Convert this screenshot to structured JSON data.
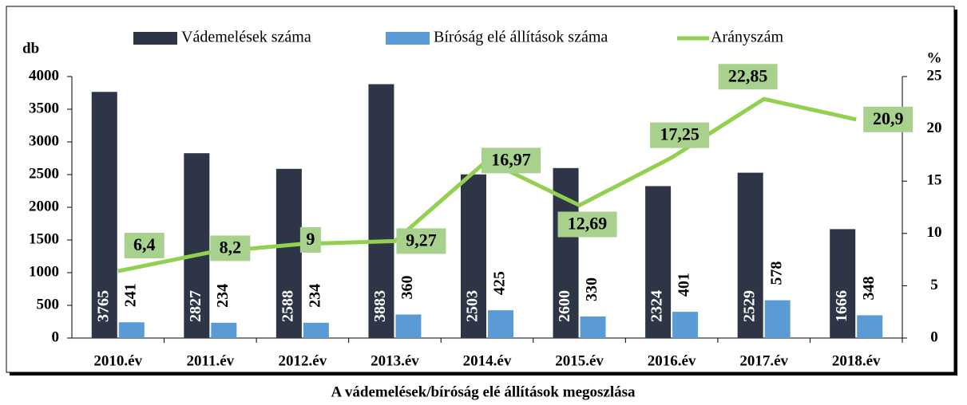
{
  "chart_data": {
    "type": "bar",
    "caption": "A vádemelések/bíróság elé állítások megoszlása",
    "ylabel": "db",
    "y2label": "%",
    "categories": [
      "2010.év",
      "2011.év",
      "2012.év",
      "2013.év",
      "2014.év",
      "2015.év",
      "2016.év",
      "2017.év",
      "2018.év"
    ],
    "series": [
      {
        "name": "Vádemelések száma",
        "color": "#2e3547",
        "type": "bar",
        "values": [
          3765,
          2827,
          2588,
          3883,
          2503,
          2600,
          2324,
          2529,
          1666
        ]
      },
      {
        "name": "Bíróság elé állítások száma",
        "color": "#5b9bd5",
        "type": "bar",
        "values": [
          241,
          234,
          234,
          360,
          425,
          330,
          401,
          578,
          348
        ]
      },
      {
        "name": "Arányszám",
        "color": "#92d050",
        "type": "line",
        "axis": "y2",
        "values": [
          6.4,
          8.2,
          9,
          9.27,
          16.97,
          12.69,
          17.25,
          22.85,
          20.9
        ],
        "value_labels": [
          "6,4",
          "8,2",
          "9",
          "9,27",
          "16,97",
          "12,69",
          "17,25",
          "22,85",
          "20,9"
        ]
      }
    ],
    "ylim": [
      0,
      4000
    ],
    "yticks": [
      0,
      500,
      1000,
      1500,
      2000,
      2500,
      3000,
      3500,
      4000
    ],
    "y2lim": [
      0,
      25
    ],
    "y2ticks": [
      0,
      5,
      10,
      15,
      20,
      25
    ],
    "grid": false,
    "legend": "top"
  }
}
